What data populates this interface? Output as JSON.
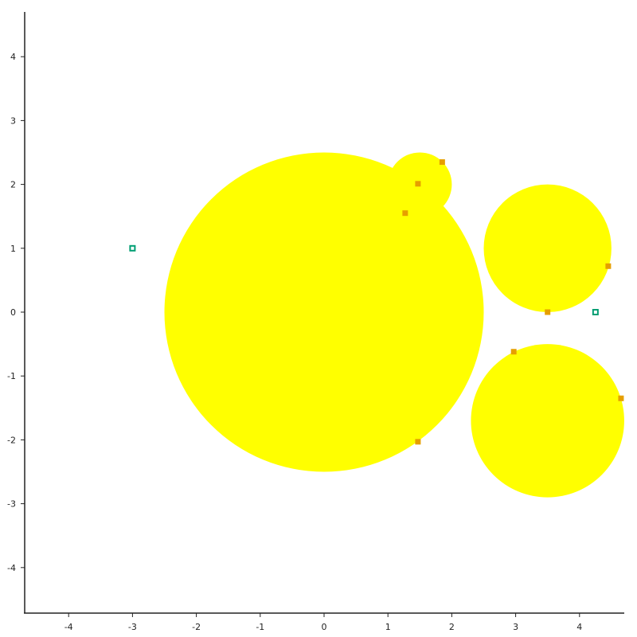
{
  "chart_data": {
    "type": "scatter",
    "title": "",
    "xlabel": "",
    "ylabel": "",
    "xlim": [
      -4.7,
      4.7
    ],
    "ylim": [
      -4.7,
      4.7
    ],
    "grid": false,
    "x_ticks": [
      "-4",
      "-3",
      "-2",
      "-1",
      "0",
      "1",
      "2",
      "3",
      "4"
    ],
    "y_ticks": [
      "4",
      "3",
      "2",
      "1",
      "0",
      "-1",
      "-2",
      "-3",
      "-4"
    ],
    "circles": [
      {
        "cx": 0.0,
        "cy": 0.0,
        "r": 2.5,
        "color": "#ffff00"
      },
      {
        "cx": 1.5,
        "cy": 2.0,
        "r": 0.5,
        "color": "#ffff00"
      },
      {
        "cx": 3.5,
        "cy": 1.0,
        "r": 1.0,
        "color": "#ffff00"
      },
      {
        "cx": 3.5,
        "cy": -1.7,
        "r": 1.2,
        "color": "#ffff00"
      }
    ],
    "series": [
      {
        "marker": "filled-square",
        "color": "#e69f00",
        "points": [
          {
            "x": 1.85,
            "y": 2.35
          },
          {
            "x": 1.47,
            "y": 2.01
          },
          {
            "x": 1.27,
            "y": 1.55
          },
          {
            "x": 4.45,
            "y": 0.72
          },
          {
            "x": 3.5,
            "y": 0.0
          },
          {
            "x": 2.97,
            "y": -0.62
          },
          {
            "x": 4.65,
            "y": -1.35
          },
          {
            "x": 1.47,
            "y": -2.03
          }
        ]
      },
      {
        "marker": "hollow-square",
        "color": "#009e73",
        "points": [
          {
            "x": -3.0,
            "y": 1.0
          },
          {
            "x": 4.25,
            "y": 0.0
          }
        ]
      }
    ]
  }
}
